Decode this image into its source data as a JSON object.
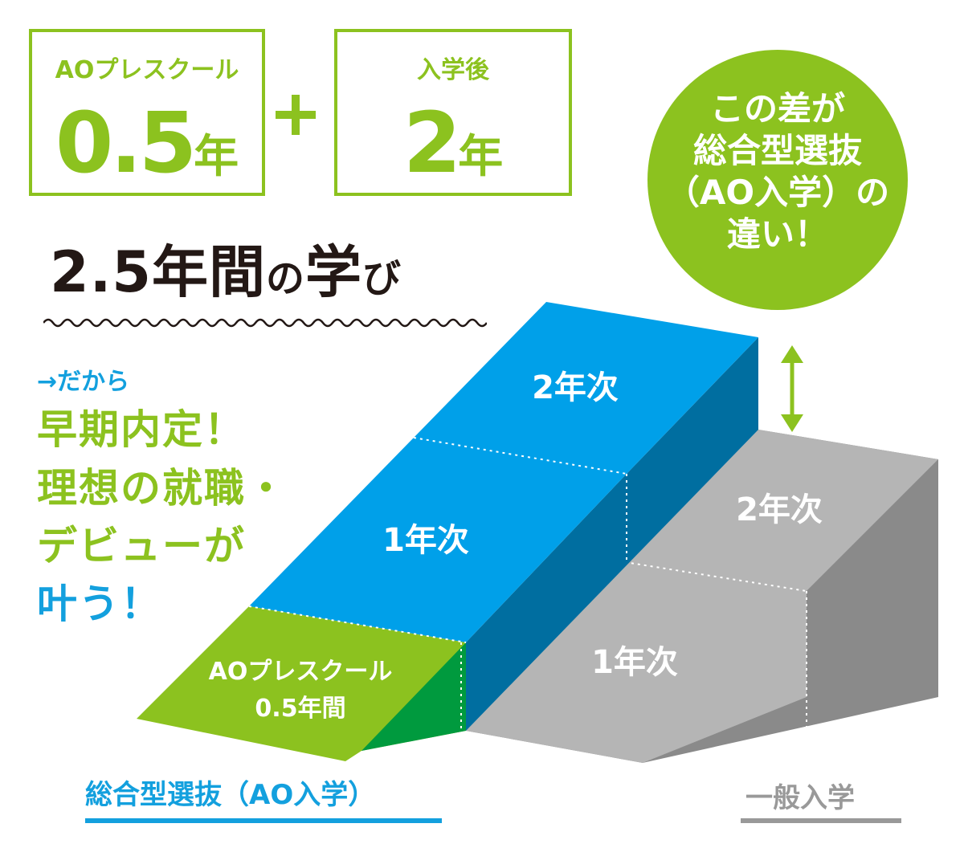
{
  "boxes": {
    "left": {
      "small": "AOプレスクール",
      "num": "0.5",
      "unit": "年"
    },
    "right": {
      "small": "入学後",
      "num": "2",
      "unit": "年"
    }
  },
  "title": {
    "main": "2.5年間",
    "no": "の",
    "gaku": "学",
    "bi": "び"
  },
  "therefore": "→だから",
  "message": {
    "line1": "早期内定！",
    "line2": "理想の就職・",
    "line3": "デビューが",
    "line4": "叶う！"
  },
  "circle": {
    "line1": "この差が",
    "line2": "総合型選抜",
    "line3": "（AO入学）の",
    "line4": "違い！"
  },
  "ao_stairs": {
    "year2": "2年次",
    "year1": "1年次",
    "preschool_line1": "AOプレスクール",
    "preschool_line2": "0.5年間"
  },
  "general_stairs": {
    "year2": "2年次",
    "year1": "1年次"
  },
  "captions": {
    "ao": "総合型選抜（AO入学）",
    "general": "一般入学"
  },
  "colors": {
    "green": "#8cc21f",
    "dark_green": "#009a3e",
    "blue": "#00a0e9",
    "dark_blue": "#006ea0",
    "gray": "#b5b5b5",
    "dark_gray": "#8a8a8a",
    "text_dark": "#231815"
  }
}
